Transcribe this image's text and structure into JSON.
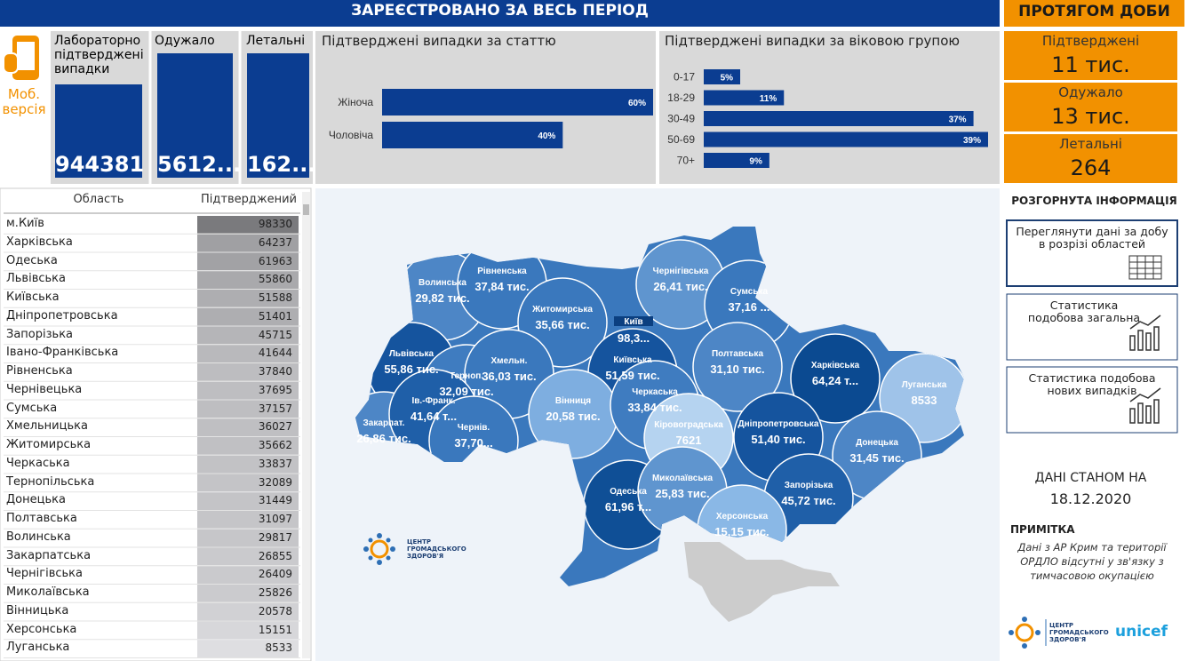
{
  "header": {
    "title": "ЗАРЕЄСТРОВАНО ЗА ВЕСЬ ПЕРІОД",
    "daily_title": "ПРОТЯГОМ ДОБИ"
  },
  "mobile_link": "Моб. версія",
  "totals": [
    {
      "label": "Лабораторно підтверджені випадки",
      "value": "944381"
    },
    {
      "label": "Одужало",
      "value": "5612..."
    },
    {
      "label": "Летальні",
      "value": "162..."
    }
  ],
  "chart_data": [
    {
      "type": "bar",
      "orientation": "horizontal",
      "title": "Підтверджені випадки за статтю",
      "categories": [
        "Жіноча",
        "Чоловіча"
      ],
      "values": [
        60,
        40
      ],
      "value_labels": [
        "60%",
        "40%"
      ],
      "color": "#0b3d91"
    },
    {
      "type": "bar",
      "orientation": "horizontal",
      "title": "Підтверджені випадки за віковою групою",
      "categories": [
        "0-17",
        "18-29",
        "30-49",
        "50-69",
        "70+"
      ],
      "values": [
        5,
        11,
        37,
        39,
        9
      ],
      "value_labels": [
        "5%",
        "11%",
        "37%",
        "39%",
        "9%"
      ],
      "color": "#0b3d91"
    }
  ],
  "daily": [
    {
      "label": "Підтверджені",
      "value": "11 тис."
    },
    {
      "label": "Одужало",
      "value": "13 тис."
    },
    {
      "label": "Летальні",
      "value": "264"
    }
  ],
  "table": {
    "columns": [
      "Область",
      "Підтверджений"
    ],
    "rows": [
      [
        "м.Київ",
        98330
      ],
      [
        "Харківська",
        64237
      ],
      [
        "Одеська",
        61963
      ],
      [
        "Львівська",
        55860
      ],
      [
        "Київська",
        51588
      ],
      [
        "Дніпропетровська",
        51401
      ],
      [
        "Запорізька",
        45715
      ],
      [
        "Івано-Франківська",
        41644
      ],
      [
        "Рівненська",
        37840
      ],
      [
        "Чернівецька",
        37695
      ],
      [
        "Сумська",
        37157
      ],
      [
        "Хмельницька",
        36027
      ],
      [
        "Житомирська",
        35662
      ],
      [
        "Черкаська",
        33837
      ],
      [
        "Тернопільська",
        32089
      ],
      [
        "Донецька",
        31449
      ],
      [
        "Полтавська",
        31097
      ],
      [
        "Волинська",
        29817
      ],
      [
        "Закарпатська",
        26855
      ],
      [
        "Чернігівська",
        26409
      ],
      [
        "Миколаївська",
        25826
      ],
      [
        "Вінницька",
        20578
      ],
      [
        "Херсонська",
        15151
      ],
      [
        "Луганська",
        8533
      ]
    ]
  },
  "map": {
    "regions": [
      {
        "name": "Волинська",
        "label": "29,82 тис.",
        "color": "#4d86c6"
      },
      {
        "name": "Рівненська",
        "label": "37,84 тис.",
        "color": "#3a78bd"
      },
      {
        "name": "Житомирська",
        "label": "35,66 тис.",
        "color": "#3a78bd"
      },
      {
        "name": "Чернігівська",
        "label": "26,41 тис.",
        "color": "#5f95cf"
      },
      {
        "name": "Сумська",
        "label": "37,16 ...",
        "color": "#3a78bd"
      },
      {
        "name": "Львівська",
        "label": "55,86 тис.",
        "color": "#15549e"
      },
      {
        "name": "Терноп.",
        "label": "32,09 тис.",
        "color": "#3f7cc0"
      },
      {
        "name": "Хмельн.",
        "label": "36,03 тис.",
        "color": "#3a78bd"
      },
      {
        "name": "Київська",
        "label": "51,59 тис.",
        "color": "#15549e"
      },
      {
        "name": "Полтавська",
        "label": "31,10 тис.",
        "color": "#4d86c6"
      },
      {
        "name": "Харківська",
        "label": "64,24 т...",
        "color": "#0b4a91"
      },
      {
        "name": "Луганська",
        "label": "8533",
        "color": "#9fc3e9"
      },
      {
        "name": "Закарпат.",
        "label": "26,86 тис.",
        "color": "#4d86c6"
      },
      {
        "name": "Ів.-Франк.",
        "label": "41,64 т...",
        "color": "#1f5fa8"
      },
      {
        "name": "Чернів.",
        "label": "37,70...",
        "color": "#3a78bd"
      },
      {
        "name": "Вінниця",
        "label": "20,58 тис.",
        "color": "#7eaee0"
      },
      {
        "name": "Черкаська",
        "label": "33,84 тис.",
        "color": "#3f7cc0"
      },
      {
        "name": "Кіровоградська",
        "label": "7621",
        "color": "#b5d3f0"
      },
      {
        "name": "Дніпропетровська",
        "label": "51,40 тис.",
        "color": "#15549e"
      },
      {
        "name": "Донецька",
        "label": "31,45 тис.",
        "color": "#4d86c6"
      },
      {
        "name": "Одеська",
        "label": "61,96 т...",
        "color": "#0f4f96"
      },
      {
        "name": "Миколаївська",
        "label": "25,83 тис.",
        "color": "#5f95cf"
      },
      {
        "name": "Запорізька",
        "label": "45,72 тис.",
        "color": "#1f5fa8"
      },
      {
        "name": "Херсонська",
        "label": "15,15 тис.",
        "color": "#8ab8e6"
      },
      {
        "name": "Київ",
        "label": "98,3...",
        "color": "#0b3f80"
      }
    ],
    "logo": "ЦЕНТР ГРОМАДСЬКОГО ЗДОРОВ'Я"
  },
  "sidebar": {
    "title": "РОЗГОРНУТА ІНФОРМАЦІЯ",
    "links": [
      "Переглянути дані за добу в розрізі областей",
      "Статистика подобова загальна",
      "Статистика подобова нових випадків"
    ],
    "date_title": "ДАНІ СТАНОМ НА",
    "date": "18.12.2020",
    "note_title": "ПРИМІТКА",
    "note": "Дані з АР Крим та території ОРДЛО відсутні у зв'язку з тимчасовою окупацією",
    "logos": [
      "ЦЕНТР ГРОМАДСЬКОГО ЗДОРОВ'Я",
      "unicef"
    ]
  }
}
